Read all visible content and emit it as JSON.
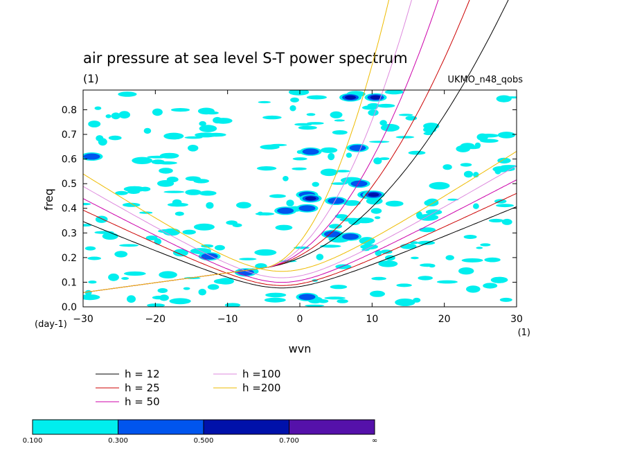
{
  "chart_data": {
    "type": "contour",
    "title": "air pressure at sea level S-T power spectrum",
    "subtitle_left": "(1)",
    "subtitle_right": "UKMO_n48_qobs",
    "xlabel": "wvn",
    "ylabel": "freq",
    "x_unit_label": "(1)",
    "y_unit_label": "(day-1)",
    "xlim": [
      -30,
      30
    ],
    "ylim": [
      0,
      0.88
    ],
    "x_ticks": [
      -30,
      -20,
      -10,
      0,
      10,
      20,
      30
    ],
    "y_ticks": [
      0.0,
      0.1,
      0.2,
      0.3,
      0.4,
      0.5,
      0.6,
      0.7,
      0.8
    ],
    "x_tick_labels": [
      "−30",
      "−20",
      "−10",
      "0",
      "10",
      "20",
      "30"
    ],
    "y_tick_labels": [
      "0.0",
      "0.1",
      "0.2",
      "0.3",
      "0.4",
      "0.5",
      "0.6",
      "0.7",
      "0.8"
    ],
    "dispersion_curves": [
      {
        "name": "h = 12",
        "h": 12,
        "color": "#000000"
      },
      {
        "name": "h = 25",
        "h": 25,
        "color": "#cc0000"
      },
      {
        "name": "h = 50",
        "h": 50,
        "color": "#cc00aa"
      },
      {
        "name": "h =100",
        "h": 100,
        "color": "#dd88dd"
      },
      {
        "name": "h =200",
        "h": 200,
        "color": "#eebb00"
      }
    ],
    "color_scale": {
      "levels": [
        "0.100",
        "0.300",
        "0.500",
        "0.700",
        "∞"
      ],
      "colors": [
        "#00eeee",
        "#0055ee",
        "#0011aa",
        "#5511aa"
      ]
    },
    "contour_patches": [
      {
        "x": -28.8,
        "y": 0.61,
        "level": 2
      },
      {
        "x": -12.5,
        "y": 0.205,
        "level": 2
      },
      {
        "x": -7.5,
        "y": 0.14,
        "level": 2
      },
      {
        "x": 1,
        "y": 0.455,
        "level": 2
      },
      {
        "x": 1,
        "y": 0.4,
        "level": 2
      },
      {
        "x": 1.5,
        "y": 0.63,
        "level": 2
      },
      {
        "x": 5,
        "y": 0.43,
        "level": 2
      },
      {
        "x": 7,
        "y": 0.285,
        "level": 2
      },
      {
        "x": 8.2,
        "y": 0.5,
        "level": 2
      },
      {
        "x": 9.5,
        "y": 0.455,
        "level": 2
      },
      {
        "x": 10.5,
        "y": 0.85,
        "level": 3
      },
      {
        "x": 7,
        "y": 0.85,
        "level": 3
      },
      {
        "x": 1.5,
        "y": 0.44,
        "level": 3
      },
      {
        "x": 10.2,
        "y": 0.455,
        "level": 3
      },
      {
        "x": 1,
        "y": 0.04,
        "level": 2
      },
      {
        "x": 4.5,
        "y": 0.295,
        "level": 2
      },
      {
        "x": -2,
        "y": 0.39,
        "level": 2
      },
      {
        "x": 8,
        "y": 0.645,
        "level": 2
      }
    ],
    "grid": false
  }
}
